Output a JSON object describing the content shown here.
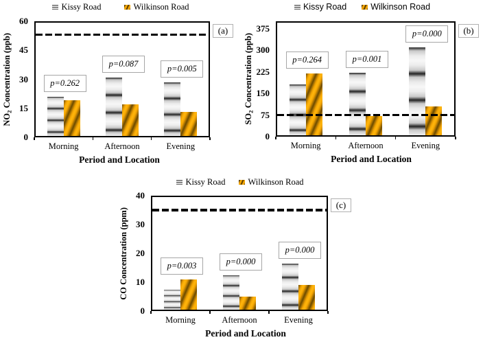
{
  "legend": {
    "series1": "Kissy Road",
    "series2": "Wilkinson Road"
  },
  "colors": {
    "kissy_light": "#f2f2f2",
    "kissy_dark": "#222222",
    "wilkinson_bright": "#f5a703",
    "wilkinson_dark": "#6b4a00",
    "reference_line": "#000000",
    "annotation_border": "#a6a6a6"
  },
  "chart_data": [
    {
      "type": "bar",
      "panel_label": "(a)",
      "ylabel": {
        "base": "NO",
        "sub": "2",
        "rest": " Concentration (ppb)"
      },
      "xlabel": "Period and Location",
      "categories": [
        "Morning",
        "Afternoon",
        "Evening"
      ],
      "series": [
        {
          "name": "Kissy Road",
          "values": [
            21,
            31,
            28.5
          ]
        },
        {
          "name": "Wilkinson Road",
          "values": [
            19,
            17,
            13
          ]
        }
      ],
      "p_labels": [
        "p=0.262",
        "p=0.087",
        "p=0.005"
      ],
      "reference_line": 53,
      "ylim": [
        0,
        60
      ],
      "yticks": [
        0,
        15,
        30,
        45,
        60
      ],
      "legend_position": "top",
      "grid": false
    },
    {
      "type": "bar",
      "panel_label": "(b)",
      "ylabel": {
        "base": "SO",
        "sub": "2",
        "rest": " Concentration (ppb)"
      },
      "xlabel": "Period and Location",
      "categories": [
        "Morning",
        "Afternoon",
        "Evening"
      ],
      "series": [
        {
          "name": "Kissy Road",
          "values": [
            182,
            222,
            310
          ]
        },
        {
          "name": "Wilkinson Road",
          "values": [
            218,
            72,
            105
          ]
        }
      ],
      "p_labels": [
        "p=0.264",
        "p=0.001",
        "p=0.000"
      ],
      "reference_line": 75,
      "ylim": [
        0,
        400
      ],
      "yticks": [
        0,
        75,
        150,
        225,
        300,
        375
      ],
      "legend_position": "top",
      "grid": false
    },
    {
      "type": "bar",
      "panel_label": "(c)",
      "ylabel": {
        "base": "CO",
        "sub": "",
        "rest": " Concentration (ppm)"
      },
      "xlabel": "Period and Location",
      "categories": [
        "Morning",
        "Afternoon",
        "Evening"
      ],
      "series": [
        {
          "name": "Kissy Road",
          "values": [
            7.5,
            12.5,
            16.5
          ]
        },
        {
          "name": "Wilkinson Road",
          "values": [
            11,
            5,
            9
          ]
        }
      ],
      "p_labels": [
        "p=0.003",
        "p=0.000",
        "p=0.000"
      ],
      "reference_line": 35,
      "ylim": [
        0,
        40
      ],
      "yticks": [
        0,
        10,
        20,
        30,
        40
      ],
      "legend_position": "top",
      "grid": false
    }
  ]
}
